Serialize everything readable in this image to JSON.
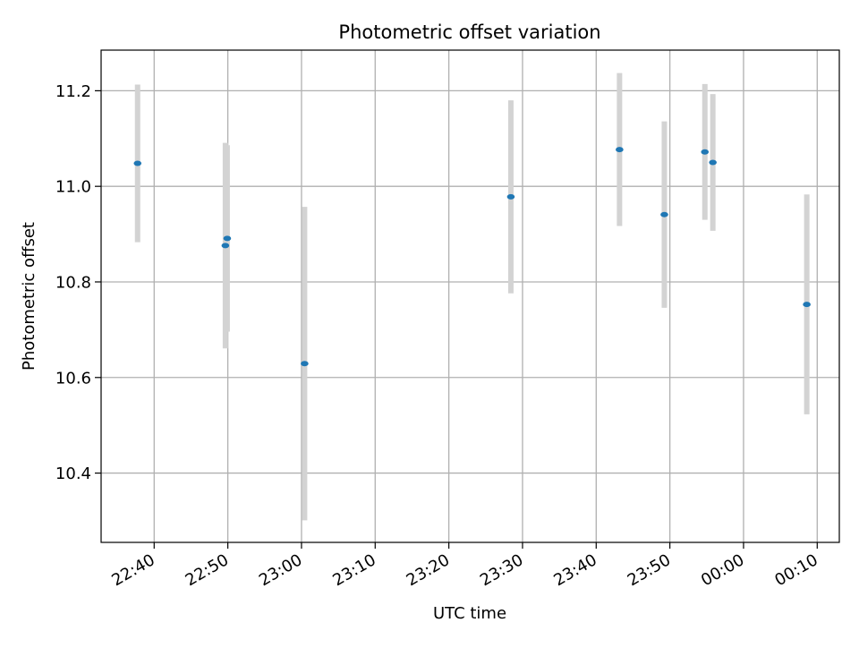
{
  "chart_data": {
    "type": "scatter",
    "title": "Photometric offset variation",
    "xlabel": "UTC time",
    "ylabel": "Photometric offset",
    "grid": true,
    "legend": "none",
    "x_tick_labels": [
      "22:40",
      "22:50",
      "23:00",
      "23:10",
      "23:20",
      "23:30",
      "23:40",
      "23:50",
      "00:00",
      "00:10"
    ],
    "x_tick_minutes": [
      0,
      10,
      20,
      30,
      40,
      50,
      60,
      70,
      80,
      90
    ],
    "y_ticks": [
      10.4,
      10.6,
      10.8,
      11.0,
      11.2
    ],
    "y_tick_labels": [
      "10.4",
      "10.6",
      "10.8",
      "11.0",
      "11.2"
    ],
    "xlim_minutes": [
      -7.2,
      93.0
    ],
    "ylim": [
      10.255,
      11.285
    ],
    "colors": {
      "marker": "#1f77b4",
      "errorbar": "#d3d3d3",
      "grid": "#b0b0b0",
      "axes": "#000000"
    },
    "series": [
      {
        "points": [
          {
            "t": "22:37:45",
            "y": 11.048,
            "err": 0.165
          },
          {
            "t": "22:49:40",
            "y": 10.876,
            "err": 0.215
          },
          {
            "t": "22:49:55",
            "y": 10.891,
            "err": 0.195
          },
          {
            "t": "23:00:25",
            "y": 10.629,
            "err": 0.328
          },
          {
            "t": "23:28:25",
            "y": 10.978,
            "err": 0.202
          },
          {
            "t": "23:43:10",
            "y": 11.077,
            "err": 0.16
          },
          {
            "t": "23:49:15",
            "y": 10.941,
            "err": 0.195
          },
          {
            "t": "23:54:45",
            "y": 11.072,
            "err": 0.142
          },
          {
            "t": "23:55:50",
            "y": 11.05,
            "err": 0.143
          },
          {
            "t": "00:08:35",
            "y": 10.753,
            "err": 0.23
          }
        ]
      }
    ]
  }
}
